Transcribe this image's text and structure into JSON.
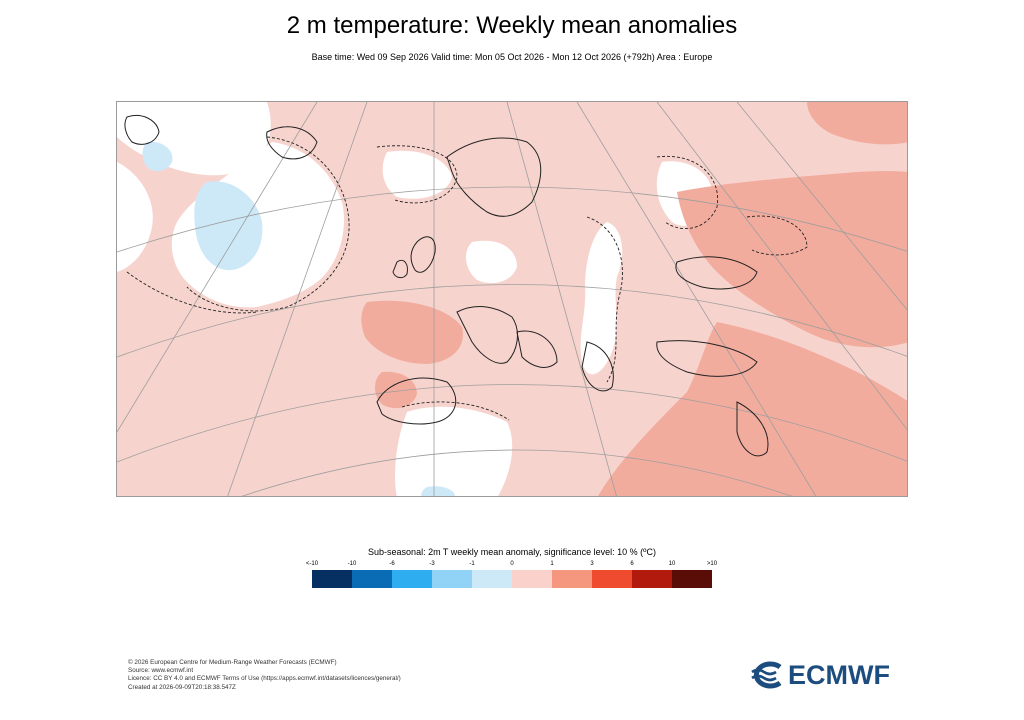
{
  "title": "2 m temperature: Weekly mean anomalies",
  "subtitle": "Base time: Wed 09 Sep 2026 Valid time: Mon 05 Oct 2026 - Mon 12 Oct 2026 (+792h) Area : Europe",
  "legend": {
    "title": "Sub-seasonal: 2m T weekly mean anomaly, significance level: 10 % (ºC)",
    "ticks": [
      "<-10",
      "-10",
      "-6",
      "-3",
      "-1",
      "0",
      "1",
      "3",
      "6",
      "10",
      ">10"
    ],
    "colors": [
      "#053061",
      "#0a6cb4",
      "#2eaef0",
      "#90d3f7",
      "#cde9f8",
      "#fbd2cb",
      "#f5967e",
      "#ef4b2f",
      "#b11a0c",
      "#5a0d06"
    ]
  },
  "map": {
    "region": "Europe",
    "background_color": "#f7d3cd",
    "neutral_color": "#ffffff",
    "warm_color": "#f2ac9e",
    "cool_color": "#cde9f8"
  },
  "footer": {
    "line1": "© 2026 European Centre for Medium-Range Weather Forecasts (ECMWF)",
    "line2": "Source: www.ecmwf.int",
    "line3": "Licence: CC BY 4.0 and ECMWF Terms of Use (https://apps.ecmwf.int/datasets/licences/general/)",
    "line4": "Created at 2026-09-09T20:18:38.547Z"
  },
  "logo": {
    "text": "ECMWF"
  }
}
